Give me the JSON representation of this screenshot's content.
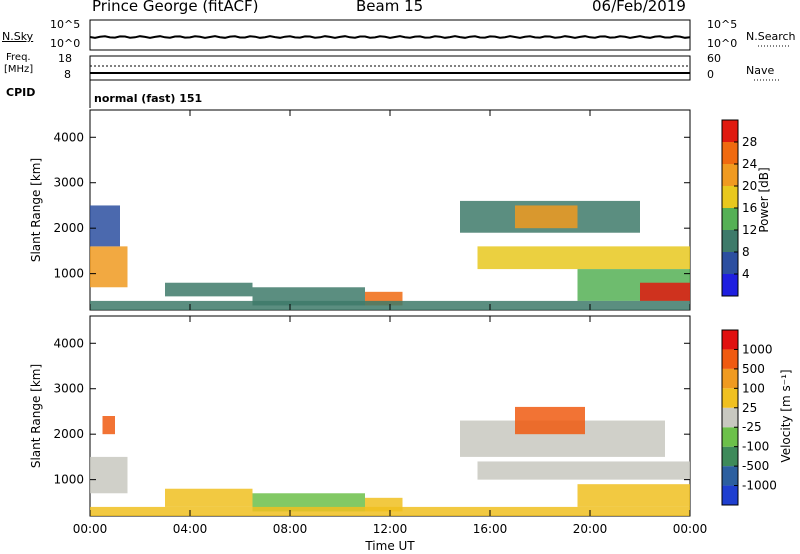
{
  "header": {
    "station": "Prince George (fitACF)",
    "beam": "Beam 15",
    "date": "06/Feb/2019"
  },
  "top_panel": {
    "left_label": "N.Sky",
    "left_ticks": [
      "10^5",
      "10^0"
    ],
    "right_label": "N.Search",
    "right_ticks": [
      "10^5",
      "10^0"
    ]
  },
  "freq_panel": {
    "left_label_line1": "Freq.",
    "left_label_line2": "[MHz]",
    "left_ticks": [
      "18",
      "8"
    ],
    "right_label": "Nave",
    "right_ticks": [
      "60",
      "0"
    ]
  },
  "cpid": {
    "label": "CPID",
    "value": "normal (fast) 151"
  },
  "colors": {
    "power_scale": [
      "#1f1fe0",
      "#2c4fa0",
      "#3e7a6a",
      "#55b055",
      "#e8c81e",
      "#f09a20",
      "#f06a10",
      "#e01a10"
    ],
    "velocity_scale": [
      "#1f3fcf",
      "#2c5f9f",
      "#3e8a5a",
      "#6cc04a",
      "#c8c8c0",
      "#f0c020",
      "#f09a20",
      "#f05a10",
      "#e01010"
    ]
  },
  "chart_data": [
    {
      "type": "heatmap",
      "panel": "power",
      "ylabel": "Slant Range [km]",
      "yticks": [
        "1000",
        "2000",
        "3000",
        "4000"
      ],
      "ylim": [
        200,
        4600
      ],
      "xlim": [
        0,
        24
      ],
      "xticks": [
        "00:00",
        "04:00",
        "08:00",
        "12:00",
        "16:00",
        "20:00",
        "00:00"
      ],
      "colorbar_label": "Power [dB]",
      "colorbar_ticks": [
        "4",
        "8",
        "12",
        "16",
        "20",
        "24",
        "28"
      ],
      "regions": [
        {
          "x": [
            0.0,
            1.5
          ],
          "y": [
            700,
            1600
          ],
          "level": 5
        },
        {
          "x": [
            0.0,
            1.2
          ],
          "y": [
            1600,
            2500
          ],
          "level": 1
        },
        {
          "x": [
            3.0,
            6.5
          ],
          "y": [
            500,
            800
          ],
          "level": 2
        },
        {
          "x": [
            6.5,
            11.0
          ],
          "y": [
            300,
            700
          ],
          "level": 2
        },
        {
          "x": [
            11.0,
            12.5
          ],
          "y": [
            300,
            600
          ],
          "level": 6
        },
        {
          "x": [
            14.8,
            22.0
          ],
          "y": [
            1900,
            2600
          ],
          "level": 2
        },
        {
          "x": [
            15.5,
            24.0
          ],
          "y": [
            1100,
            1600
          ],
          "level": 4
        },
        {
          "x": [
            17.0,
            19.5
          ],
          "y": [
            2000,
            2500
          ],
          "level": 5
        },
        {
          "x": [
            19.5,
            24.0
          ],
          "y": [
            400,
            1100
          ],
          "level": 3
        },
        {
          "x": [
            22.0,
            24.0
          ],
          "y": [
            400,
            800
          ],
          "level": 7
        },
        {
          "x": [
            0.0,
            24.0
          ],
          "y": [
            200,
            400
          ],
          "level": 2
        }
      ]
    },
    {
      "type": "heatmap",
      "panel": "velocity",
      "ylabel": "Slant Range [km]",
      "yticks": [
        "1000",
        "2000",
        "3000",
        "4000"
      ],
      "ylim": [
        200,
        4600
      ],
      "xlim": [
        0,
        24
      ],
      "xticks": [
        "00:00",
        "04:00",
        "08:00",
        "12:00",
        "16:00",
        "20:00",
        "00:00"
      ],
      "xlabel": "Time UT",
      "colorbar_label": "Velocity [m s⁻¹]",
      "colorbar_ticks": [
        "1000",
        "500",
        "100",
        "25",
        "-25",
        "-100",
        "-500",
        "-1000"
      ],
      "regions": [
        {
          "x": [
            0.0,
            1.5
          ],
          "y": [
            700,
            1500
          ],
          "level": 4
        },
        {
          "x": [
            0.5,
            1.0
          ],
          "y": [
            2000,
            2400
          ],
          "level": 7
        },
        {
          "x": [
            3.0,
            6.5
          ],
          "y": [
            400,
            800
          ],
          "level": 5
        },
        {
          "x": [
            6.5,
            11.0
          ],
          "y": [
            300,
            700
          ],
          "level": 3
        },
        {
          "x": [
            11.0,
            12.5
          ],
          "y": [
            300,
            600
          ],
          "level": 5
        },
        {
          "x": [
            14.8,
            23.0
          ],
          "y": [
            1500,
            2300
          ],
          "level": 4
        },
        {
          "x": [
            17.0,
            19.8
          ],
          "y": [
            2000,
            2600
          ],
          "level": 7
        },
        {
          "x": [
            15.5,
            24.0
          ],
          "y": [
            1000,
            1400
          ],
          "level": 4
        },
        {
          "x": [
            19.5,
            24.0
          ],
          "y": [
            400,
            900
          ],
          "level": 5
        },
        {
          "x": [
            0.0,
            24.0
          ],
          "y": [
            200,
            400
          ],
          "level": 5
        }
      ]
    }
  ],
  "xlabel": "Time UT"
}
